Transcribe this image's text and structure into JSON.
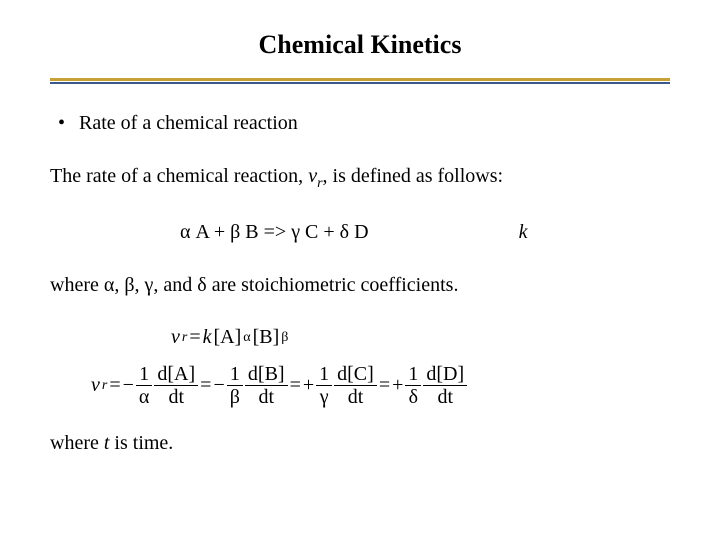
{
  "title": "Chemical Kinetics",
  "bullet": "Rate of a chemical reaction",
  "intro_pre": "The rate of a chemical reaction, ",
  "intro_var": "v",
  "intro_sub": "r",
  "intro_post": ", is defined as follows:",
  "reaction": {
    "alpha": "α",
    "A": "A",
    "plus1": " + ",
    "beta": "β",
    "B": "B",
    "arrow": "  =>  ",
    "gamma": "γ",
    "C": "C",
    "plus2": " + ",
    "delta": "δ",
    "D": "D",
    "k": "k"
  },
  "where1_pre": "where ",
  "where1_a": "α",
  "where1_c1": ", ",
  "where1_b": "β",
  "where1_c2": ", ",
  "where1_g": "γ",
  "where1_c3": ", and ",
  "where1_d": "δ",
  "where1_post": " are stoichiometric coefficients.",
  "rate_law": {
    "vr": "v",
    "vr_sub": "r",
    "eq": " = ",
    "k": "k",
    "A": "[A]",
    "a_exp": "α",
    "B": " [B]",
    "b_exp": "β"
  },
  "rate_eq": {
    "lhs_v": "v",
    "lhs_sub": "r",
    "eq": " = ",
    "m1": "−",
    "one": "1",
    "alpha": "α",
    "dA_num": "d[A]",
    "dt": "dt",
    "m2": "−",
    "beta": "β",
    "dB_num": "d[B]",
    "p1": "+",
    "gamma": "γ",
    "dC_num": "d[C]",
    "p2": "+",
    "delta": "δ",
    "dD_num": "d[D]"
  },
  "where2_pre": "where ",
  "where2_t": "t",
  "where2_post": " is time.",
  "colors": {
    "divider_top": "#c8a038",
    "divider_bottom": "#3a5a8a",
    "text": "#000000",
    "background": "#ffffff"
  }
}
